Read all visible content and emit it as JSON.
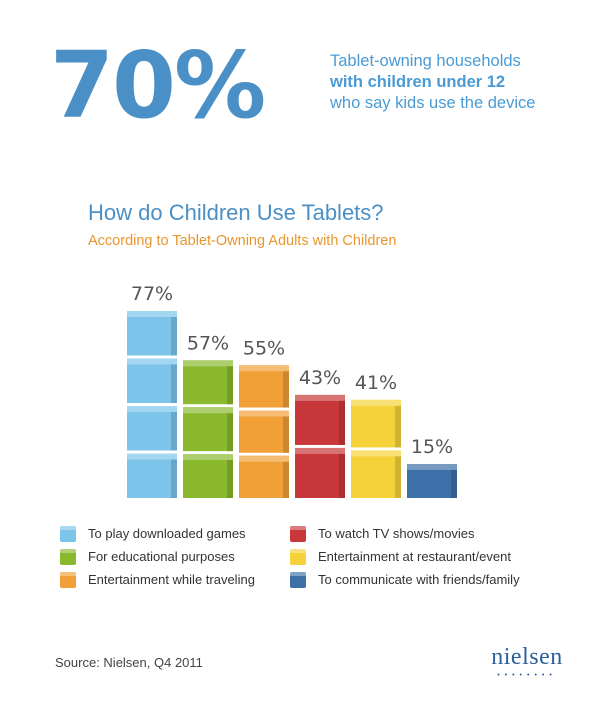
{
  "headline": {
    "stat": "70%",
    "line1": "Tablet-owning households",
    "line2": "with children under 12",
    "line3": "who say kids use the device"
  },
  "chart_data": {
    "type": "bar",
    "title": "How do Children Use Tablets?",
    "subtitle": "According to Tablet-Owning Adults with Children",
    "categories": [
      "To play downloaded games",
      "For educational purposes",
      "Entertainment while traveling",
      "To watch TV shows/movies",
      "Entertainment at restaurant/event",
      "To communicate with friends/family"
    ],
    "values": [
      77,
      57,
      55,
      43,
      41,
      15
    ],
    "value_labels": [
      "77%",
      "57%",
      "55%",
      "43%",
      "41%",
      "15%"
    ],
    "colors": [
      "#7cc4ea",
      "#8ab92d",
      "#f0a037",
      "#c8383a",
      "#f5d23a",
      "#3d6fa8"
    ],
    "unit": "%",
    "ylim": [
      0,
      100
    ],
    "legend_position": "bottom"
  },
  "source": "Source: Nielsen, Q4 2011",
  "logo": {
    "text": "nielsen",
    "dots": "••••••••"
  }
}
